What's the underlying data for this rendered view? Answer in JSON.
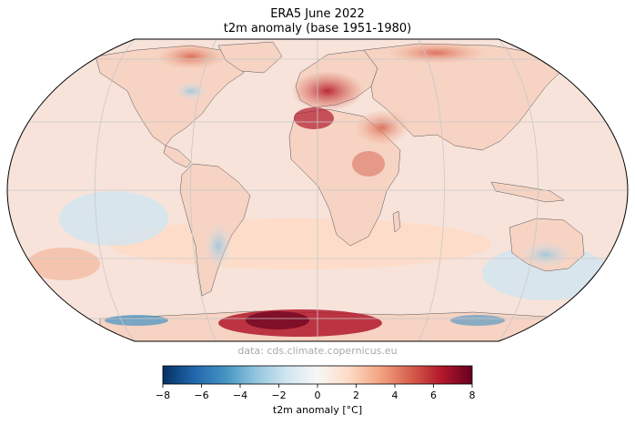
{
  "title": "ERA5 June 2022",
  "subtitle": "t2m anomaly (base 1951-1980)",
  "credit": "data: cds.climate.copernicus.eu",
  "colorbar": {
    "label": "t2m anomaly [°C]",
    "ticks": [
      "−8",
      "−6",
      "−4",
      "−2",
      "0",
      "2",
      "4",
      "6",
      "8"
    ],
    "min": -8,
    "max": 8,
    "colormap": "RdBu_r",
    "colors": [
      "#053061",
      "#2166ac",
      "#4393c3",
      "#92c5de",
      "#d1e5f0",
      "#f7f7f7",
      "#fddbc7",
      "#f4a582",
      "#d6604d",
      "#b2182b",
      "#67001f"
    ]
  },
  "map": {
    "projection": "Robinson",
    "graticule": true,
    "coastlines": true,
    "ocean_fill": "#f7e3da",
    "land_fill": "#f6d3c3"
  }
}
